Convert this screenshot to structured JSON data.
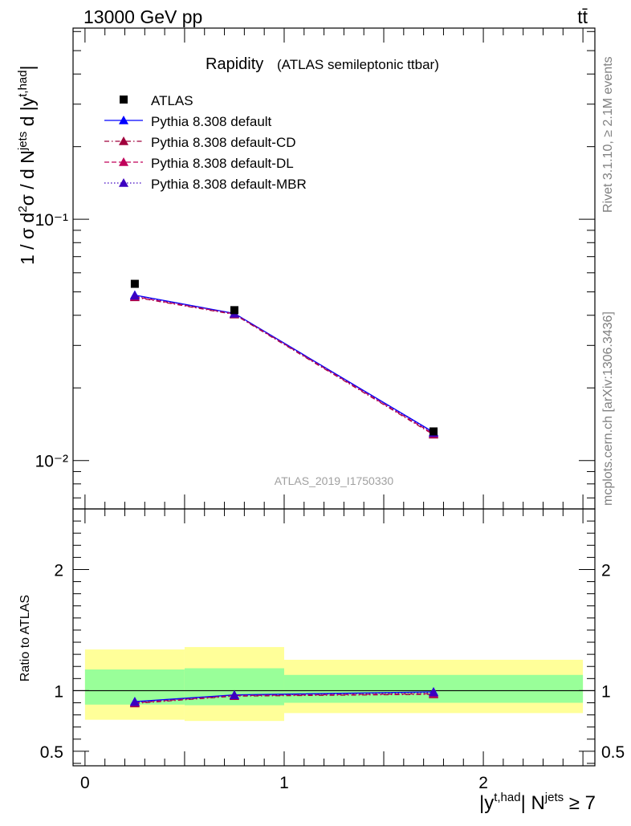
{
  "header": {
    "left": "13000 GeV pp",
    "right": "tt̄"
  },
  "side_labels": {
    "rivet": "Rivet 3.1.10, ≥ 2.1M events",
    "mcplots": "mcplots.cern.ch [arXiv:1306.3436]"
  },
  "chart_data": [
    {
      "type": "scatter",
      "panel": "main",
      "title": "Rapidity",
      "subtitle": "(ATLAS semileptonic ttbar)",
      "watermark": "ATLAS_2019_I1750330",
      "ylabel": "1 / σ d²σ / d N^jets d |y^t,had|",
      "yscale": "log",
      "ylim": [
        0.0063,
        0.62
      ],
      "xlim": [
        -0.06,
        2.56
      ],
      "ytick_labels": [
        "10⁻¹",
        "10⁻²"
      ],
      "legend_position": "top-left",
      "x": [
        0.25,
        0.75,
        1.75
      ],
      "series": [
        {
          "name": "ATLAS",
          "values": [
            0.054,
            0.042,
            0.0132
          ],
          "color": "#000000",
          "marker": "square",
          "line": "none"
        },
        {
          "name": "Pythia 8.308 default",
          "values": [
            0.0485,
            0.0407,
            0.0131
          ],
          "color": "#0000ff",
          "marker": "triangle",
          "line": "solid"
        },
        {
          "name": "Pythia 8.308 default-CD",
          "values": [
            0.0475,
            0.0403,
            0.0128
          ],
          "color": "#a0003c",
          "marker": "triangle",
          "line": "dashdot"
        },
        {
          "name": "Pythia 8.308 default-DL",
          "values": [
            0.0478,
            0.0405,
            0.0129
          ],
          "color": "#c0005a",
          "marker": "triangle",
          "line": "dashed"
        },
        {
          "name": "Pythia 8.308 default-MBR",
          "values": [
            0.0482,
            0.0406,
            0.013
          ],
          "color": "#3c00c0",
          "marker": "triangle",
          "line": "dotted"
        }
      ]
    },
    {
      "type": "line",
      "panel": "ratio",
      "ylabel": "Ratio to ATLAS",
      "xlabel": "|y^t,had| N^jets ≥ 7",
      "ylim": [
        0.38,
        2.5
      ],
      "xlim": [
        -0.06,
        2.56
      ],
      "xtick_labels": [
        "0",
        "1",
        "2"
      ],
      "ytick_labels": [
        "0.5",
        "1",
        "2"
      ],
      "uncertainty_bands": [
        {
          "x": [
            0,
            0.5
          ],
          "inner": [
            0.885,
            1.175
          ],
          "outer": [
            0.76,
            1.34
          ]
        },
        {
          "x": [
            0.5,
            1.0
          ],
          "inner": [
            0.88,
            1.185
          ],
          "outer": [
            0.75,
            1.36
          ]
        },
        {
          "x": [
            1.0,
            2.5
          ],
          "inner": [
            0.9,
            1.13
          ],
          "outer": [
            0.815,
            1.255
          ]
        }
      ],
      "band_colors": {
        "inner": "#99ff99",
        "outer": "#ffff99"
      },
      "x": [
        0.25,
        0.75,
        1.75
      ],
      "series": [
        {
          "name": "Pythia 8.308 default",
          "values": [
            0.91,
            0.965,
            0.99
          ],
          "color": "#0000ff",
          "line": "solid"
        },
        {
          "name": "Pythia 8.308 default-CD",
          "values": [
            0.895,
            0.955,
            0.97
          ],
          "color": "#a0003c",
          "line": "dashdot"
        },
        {
          "name": "Pythia 8.308 default-DL",
          "values": [
            0.9,
            0.96,
            0.975
          ],
          "color": "#c0005a",
          "line": "dashed"
        },
        {
          "name": "Pythia 8.308 default-MBR",
          "values": [
            0.905,
            0.962,
            0.985
          ],
          "color": "#3c00c0",
          "line": "dotted"
        }
      ]
    }
  ]
}
